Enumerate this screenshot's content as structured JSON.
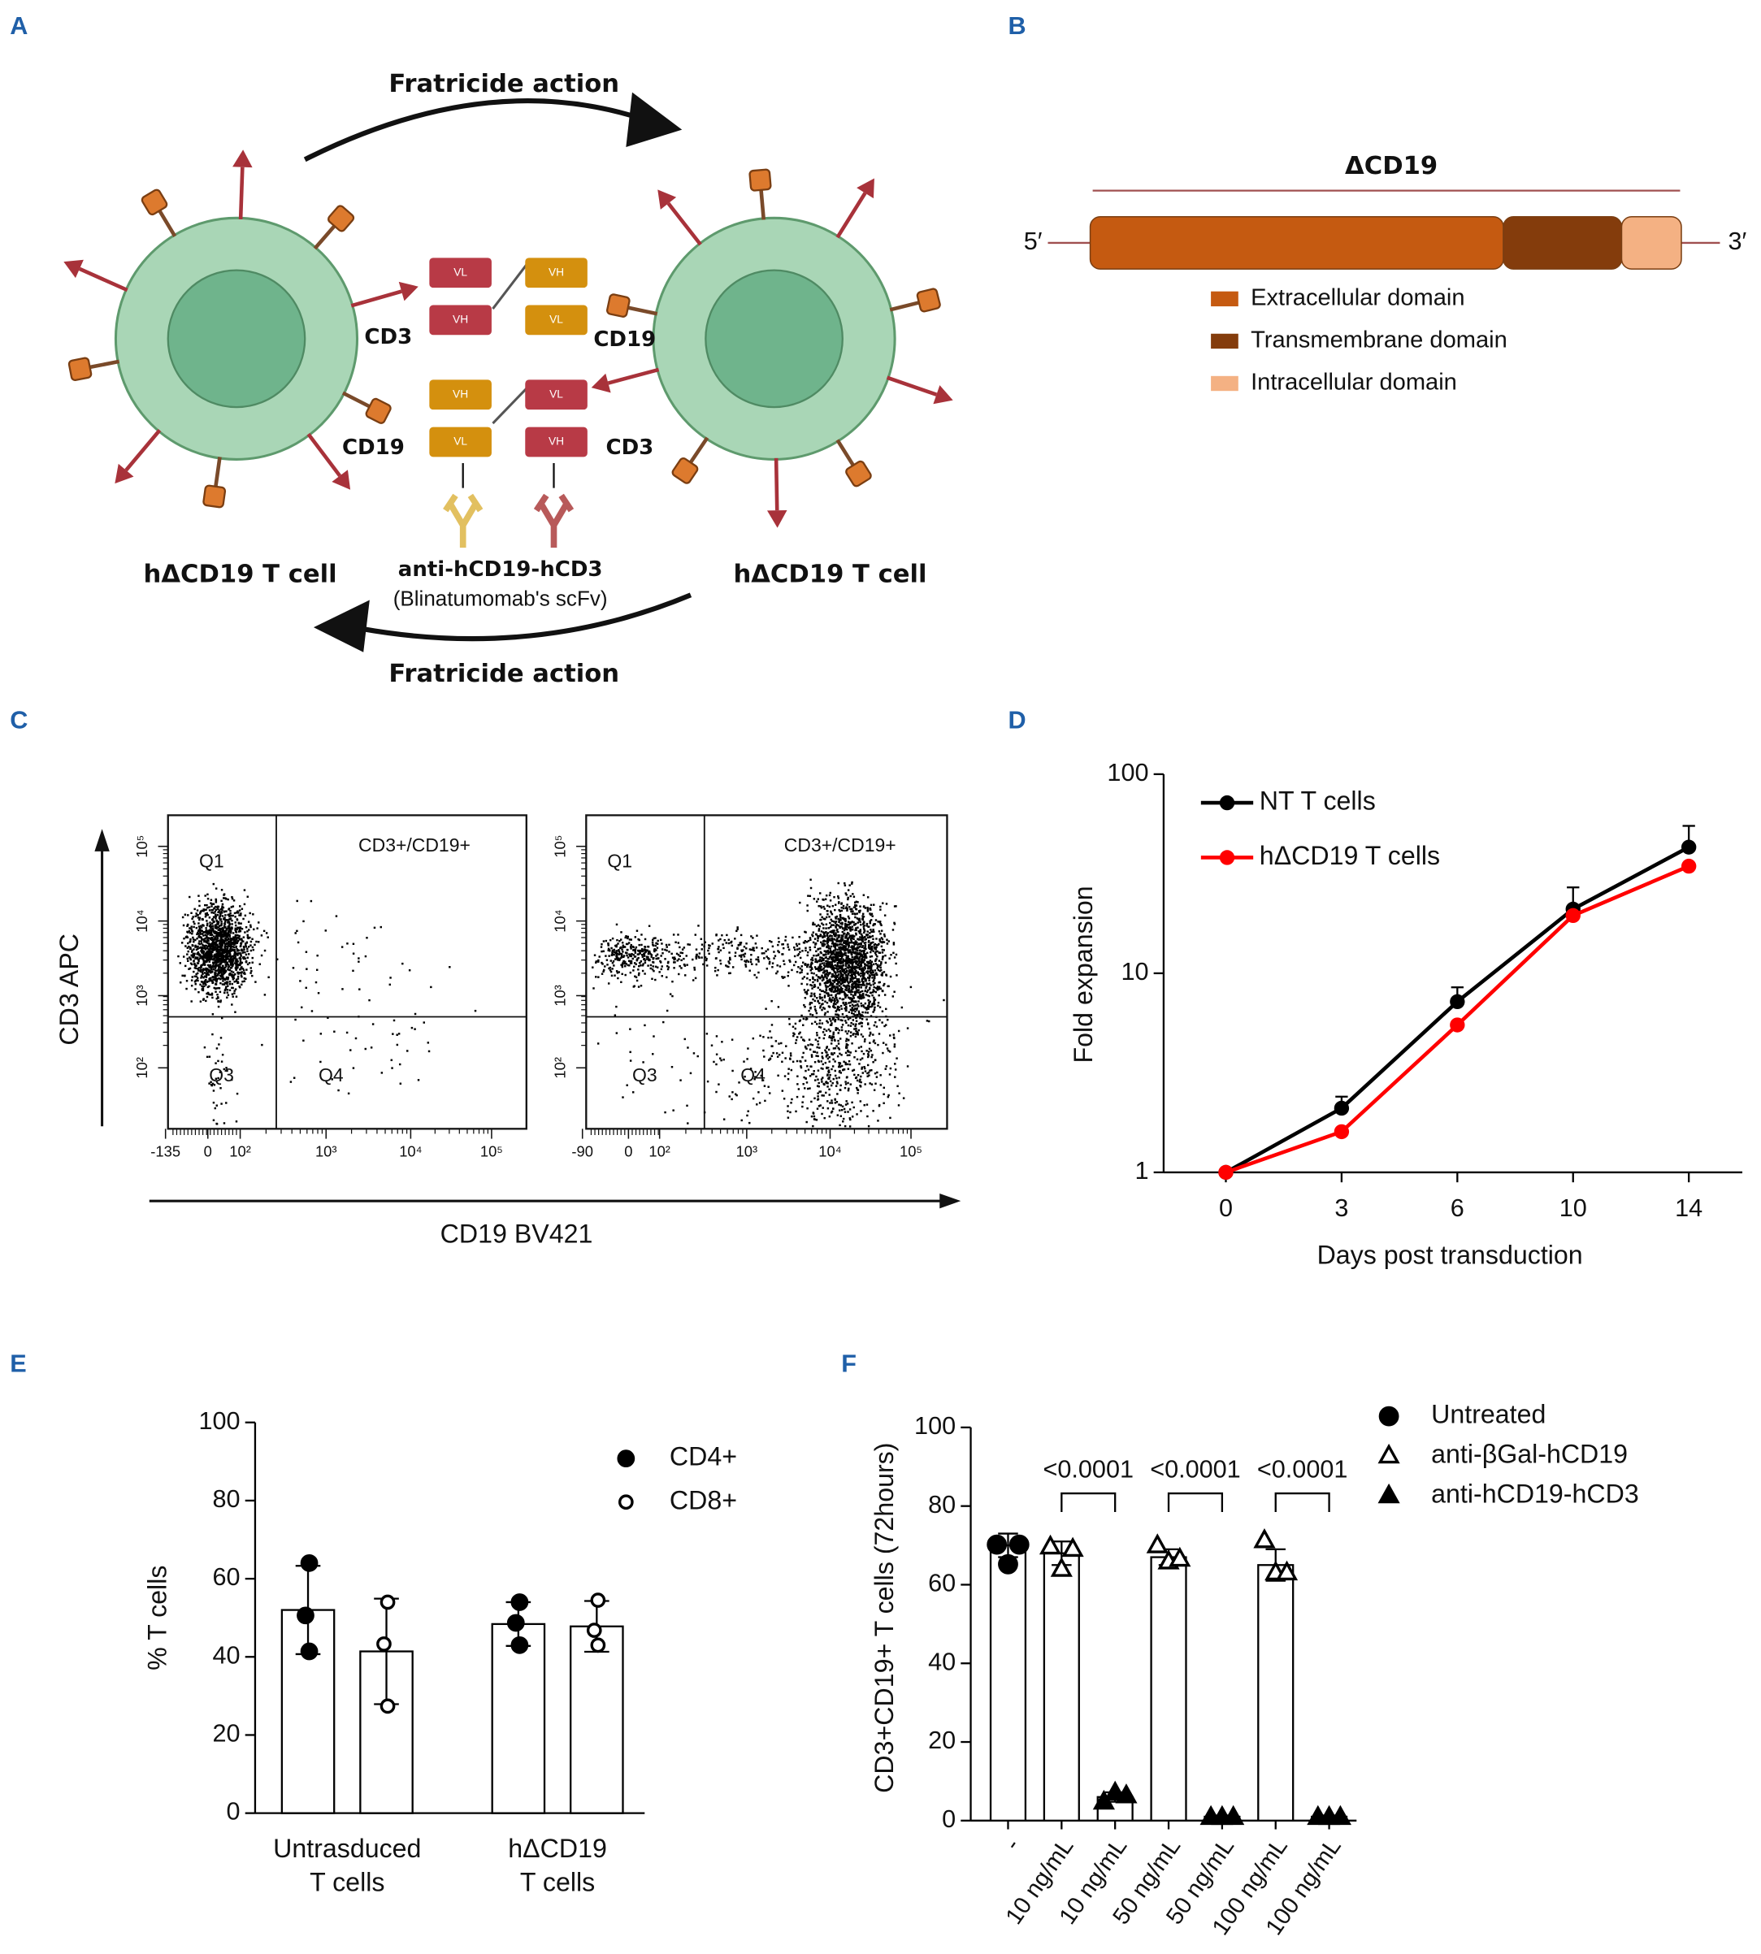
{
  "panel_labels": [
    "A",
    "B",
    "C",
    "D",
    "E",
    "F"
  ],
  "diagram": {
    "title_top": "Fratricide action",
    "title_bottom": "Fratricide action",
    "left_cell": "hΔCD19 T cell",
    "right_cell": "hΔCD19 T cell",
    "receptor_labels": [
      "CD3",
      "CD19",
      "CD19",
      "CD3"
    ],
    "scfv_chains": [
      "VL",
      "VH",
      "VH",
      "VL",
      "VH",
      "VL",
      "VL",
      "VH"
    ],
    "antibody": "anti-hCD19-hCD3",
    "antibody_note": "(Blinatumomab's scFv)"
  },
  "construct": {
    "title": "ΔCD19",
    "five_prime": "5′",
    "three_prime": "3′",
    "domains": [
      {
        "name": "Extracellular domain",
        "color": "#c55a11"
      },
      {
        "name": "Transmembrane domain",
        "color": "#843c0c"
      },
      {
        "name": "Intracellular domain",
        "color": "#f4b183"
      }
    ]
  },
  "flow": {
    "x_label": "CD19 BV421",
    "y_label": "CD3 APC",
    "quadrant_labels": [
      "Q1",
      "CD3+/CD19+",
      "Q3",
      "Q4"
    ],
    "plots": [
      {
        "x_tick_labels": [
          "-135",
          "0",
          "10²",
          "10³",
          "10⁴",
          "10⁵"
        ],
        "y_tick_labels": [
          "10²",
          "10³",
          "10⁴",
          "10⁵"
        ]
      },
      {
        "x_tick_labels": [
          "-90",
          "0",
          "10²",
          "10³",
          "10⁴",
          "10⁵"
        ],
        "y_tick_labels": [
          "10²",
          "10³",
          "10⁴",
          "10⁵"
        ]
      }
    ]
  },
  "chart_data": [
    {
      "type": "line",
      "x_label": "Days post transduction",
      "y_label": "Fold expansion",
      "categories": [
        "0",
        "3",
        "6",
        "10",
        "14"
      ],
      "series": [
        {
          "name": "NT T cells",
          "color": "#000000",
          "values": [
            1,
            2.1,
            7.2,
            21,
            43
          ],
          "errors": [
            null,
            0.3,
            1.3,
            6,
            12
          ]
        },
        {
          "name": "hΔCD19 T cells",
          "color": "#ff0000",
          "values": [
            1,
            1.6,
            5.5,
            19.5,
            34.5
          ]
        }
      ],
      "ylim": [
        1,
        100
      ],
      "yticks": [
        1,
        10,
        100
      ],
      "log_y": true,
      "legend": "upper left"
    },
    {
      "type": "bar",
      "y_label": "% T cells",
      "categories": [
        [
          "Untrasduced",
          "T cells"
        ],
        [
          "hΔCD19",
          "T cells"
        ]
      ],
      "series": [
        {
          "name": "CD4+",
          "marker": "filled-circle",
          "values": [
            52,
            48.4
          ],
          "errors": [
            11.3,
            5.6
          ],
          "points": [
            [
              64,
              50.6,
              41.4
            ],
            [
              54,
              48.7,
              43
            ]
          ]
        },
        {
          "name": "CD8+",
          "marker": "open-circle",
          "values": [
            41.4,
            47.8
          ],
          "errors": [
            13.5,
            6.5
          ],
          "points": [
            [
              54,
              43.3,
              27.4
            ],
            [
              54.5,
              46.8,
              43
            ]
          ]
        }
      ],
      "ylim": [
        0,
        100
      ],
      "yticks": [
        0,
        20,
        40,
        60,
        80,
        100
      ],
      "legend": "upper right"
    },
    {
      "type": "bar",
      "y_label": "CD3+CD19+ T cells (72hours)",
      "categories": [
        "-",
        "10 ng/mL",
        "10 ng/mL",
        "50 ng/mL",
        "50 ng/mL",
        "100 ng/mL",
        "100 ng/mL"
      ],
      "series": [
        {
          "name": "Untreated",
          "marker": "filled-circle",
          "values": [
            70,
            null,
            null,
            null,
            null,
            null,
            null
          ],
          "errors": [
            3,
            null,
            null,
            null,
            null,
            null,
            null
          ],
          "points": [
            [
              70.2,
              65.2,
              70.2
            ],
            null,
            null,
            null,
            null,
            null,
            null
          ]
        },
        {
          "name": "anti-βGal-hCD19",
          "marker": "open-triangle",
          "values": [
            null,
            68,
            null,
            67,
            null,
            65,
            null
          ],
          "errors": [
            null,
            3,
            null,
            2,
            null,
            4,
            null
          ],
          "points": [
            null,
            [
              69.6,
              63.9,
              69
            ],
            null,
            [
              69.9,
              65.8,
              66.5
            ],
            null,
            [
              71.2,
              63,
              63
            ],
            null
          ]
        },
        {
          "name": "anti-hCD19-hCD3",
          "marker": "filled-triangle",
          "values": [
            null,
            null,
            6,
            null,
            1,
            null,
            1
          ],
          "errors": [
            null,
            null,
            1.2,
            null,
            0.3,
            null,
            0.3
          ],
          "points": [
            null,
            null,
            [
              4.7,
              7,
              6.3
            ],
            null,
            [
              0.8,
              0.8,
              0.8
            ],
            null,
            [
              0.8,
              0.8,
              0.8
            ]
          ]
        }
      ],
      "significance": [
        {
          "label": "<0.0001",
          "pair": [
            1,
            2
          ]
        },
        {
          "label": "<0.0001",
          "pair": [
            3,
            4
          ]
        },
        {
          "label": "<0.0001",
          "pair": [
            5,
            6
          ]
        }
      ],
      "ylim": [
        0,
        100
      ],
      "yticks": [
        0,
        20,
        40,
        60,
        80,
        100
      ],
      "legend": "upper right"
    }
  ]
}
